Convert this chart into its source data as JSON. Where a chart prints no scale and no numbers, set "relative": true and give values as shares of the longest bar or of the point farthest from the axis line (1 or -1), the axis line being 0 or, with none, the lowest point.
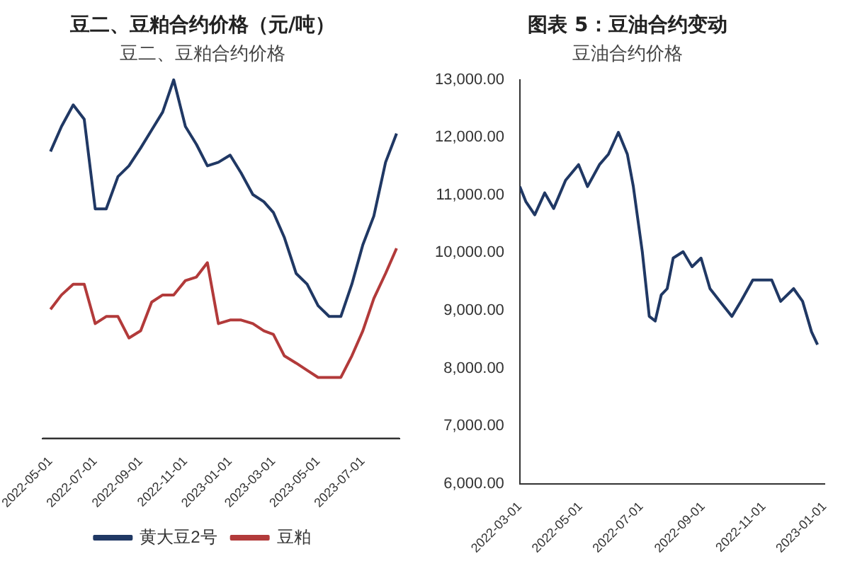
{
  "chart_data": [
    {
      "type": "line",
      "title": "豆二、豆粕合约价格（元/吨）",
      "subtitle": "豆二、豆粕合约价格",
      "relative": true,
      "grid": false,
      "marker": "none",
      "legend": "bottom",
      "x": [
        "2022-05-01",
        "2022-05-16",
        "2022-06-01",
        "2022-06-16",
        "2022-07-01",
        "2022-07-16",
        "2022-08-01",
        "2022-08-16",
        "2022-09-01",
        "2022-09-16",
        "2022-10-01",
        "2022-10-16",
        "2022-11-01",
        "2022-11-16",
        "2022-12-01",
        "2022-12-16",
        "2023-01-01",
        "2023-01-16",
        "2023-02-01",
        "2023-02-16",
        "2023-03-01",
        "2023-03-16",
        "2023-04-01",
        "2023-04-16",
        "2023-05-01",
        "2023-05-16",
        "2023-06-01",
        "2023-06-16",
        "2023-07-01",
        "2023-07-16",
        "2023-08-01",
        "2023-08-16"
      ],
      "xlim": [
        "2022-04-20",
        "2023-08-20"
      ],
      "xticks": [
        "2022-05-01",
        "2022-07-01",
        "2022-09-01",
        "2022-11-01",
        "2023-01-01",
        "2023-03-01",
        "2023-05-01",
        "2023-07-01"
      ],
      "series": [
        {
          "name": "黄大豆2号",
          "color": "#203864",
          "values": [
            0.8,
            0.87,
            0.93,
            0.89,
            0.64,
            0.64,
            0.73,
            0.76,
            0.81,
            0.86,
            0.91,
            1.0,
            0.87,
            0.82,
            0.76,
            0.77,
            0.79,
            0.74,
            0.68,
            0.66,
            0.63,
            0.56,
            0.46,
            0.43,
            0.37,
            0.34,
            0.34,
            0.43,
            0.54,
            0.62,
            0.77,
            0.85
          ]
        },
        {
          "name": "豆粕",
          "color": "#b23a3a",
          "values": [
            0.36,
            0.4,
            0.43,
            0.43,
            0.32,
            0.34,
            0.34,
            0.28,
            0.3,
            0.38,
            0.4,
            0.4,
            0.44,
            0.45,
            0.49,
            0.32,
            0.33,
            0.33,
            0.32,
            0.3,
            0.29,
            0.23,
            0.21,
            0.19,
            0.17,
            0.17,
            0.17,
            0.23,
            0.3,
            0.39,
            0.46,
            0.53
          ]
        }
      ]
    },
    {
      "type": "line",
      "title": "图表 5：豆油合约变动",
      "subtitle": "豆油合约价格",
      "grid": false,
      "marker": "none",
      "legend": false,
      "x": [
        "2022-03-01",
        "2022-03-07",
        "2022-03-16",
        "2022-03-26",
        "2022-04-04",
        "2022-04-16",
        "2022-04-29",
        "2022-05-08",
        "2022-05-20",
        "2022-05-29",
        "2022-06-08",
        "2022-06-17",
        "2022-06-23",
        "2022-07-02",
        "2022-07-09",
        "2022-07-15",
        "2022-07-21",
        "2022-07-27",
        "2022-08-02",
        "2022-08-12",
        "2022-08-21",
        "2022-08-30",
        "2022-09-08",
        "2022-09-18",
        "2022-09-30",
        "2022-10-09",
        "2022-10-21",
        "2022-10-31",
        "2022-11-09",
        "2022-11-18",
        "2022-12-01",
        "2022-12-10",
        "2022-12-19",
        "2022-12-25"
      ],
      "xlim": [
        "2022-03-01",
        "2023-01-01"
      ],
      "xticks": [
        "2022-03-01",
        "2022-05-01",
        "2022-07-01",
        "2022-09-01",
        "2022-11-01",
        "2023-01-01"
      ],
      "ylim": [
        6000,
        13000
      ],
      "yticks": [
        {
          "value": 6000,
          "label": "6,000.00"
        },
        {
          "value": 7000,
          "label": "7,000.00"
        },
        {
          "value": 8000,
          "label": "8,000.00"
        },
        {
          "value": 9000,
          "label": "9,000.00"
        },
        {
          "value": 10000,
          "label": "10,000.00"
        },
        {
          "value": 11000,
          "label": "11,000.00"
        },
        {
          "value": 12000,
          "label": "12,000.00"
        },
        {
          "value": 13000,
          "label": "13,000.00"
        }
      ],
      "series": [
        {
          "color": "#203864",
          "values": [
            11150,
            10890,
            10660,
            11040,
            10770,
            11260,
            11530,
            11150,
            11530,
            11710,
            12090,
            11710,
            11150,
            10020,
            8900,
            8820,
            9270,
            9380,
            9910,
            10020,
            9760,
            9910,
            9380,
            9160,
            8900,
            9160,
            9530,
            9530,
            9530,
            9160,
            9380,
            9160,
            8630,
            8410
          ]
        }
      ]
    }
  ]
}
